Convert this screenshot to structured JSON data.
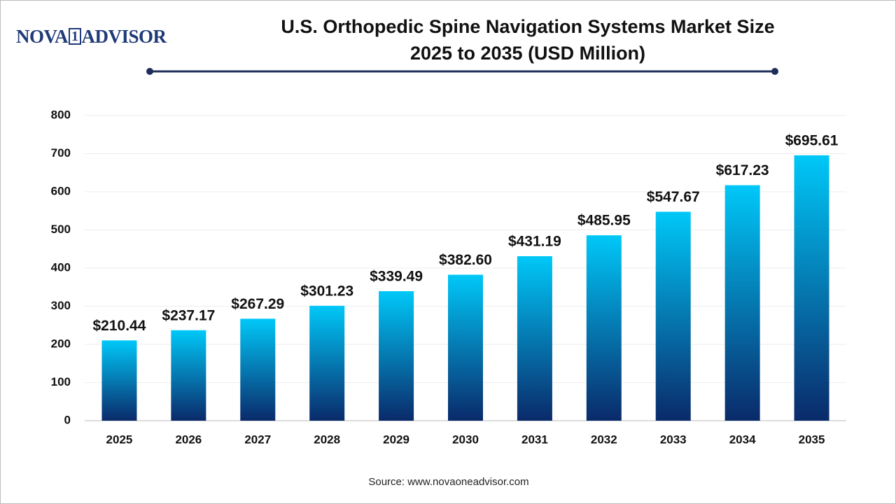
{
  "logo": {
    "left": "NOVA",
    "mark": "1",
    "right": "ADVISOR"
  },
  "source": "Source: www.novaoneadvisor.com",
  "chart_data": {
    "type": "bar",
    "title": "U.S. Orthopedic Spine Navigation Systems Market Size 2025 to 2035 (USD Million)",
    "categories": [
      "2025",
      "2026",
      "2027",
      "2028",
      "2029",
      "2030",
      "2031",
      "2032",
      "2033",
      "2034",
      "2035"
    ],
    "values": [
      210.44,
      237.17,
      267.29,
      301.23,
      339.49,
      382.6,
      431.19,
      485.95,
      547.67,
      617.23,
      695.61
    ],
    "value_labels": [
      "$210.44",
      "$237.17",
      "$267.29",
      "$301.23",
      "$339.49",
      "$382.60",
      "$431.19",
      "$485.95",
      "$547.67",
      "$617.23",
      "$695.61"
    ],
    "color": [
      "#00c8f8",
      "#0a2a6a"
    ],
    "ylim": [
      0,
      800
    ],
    "yticks": [
      0,
      100,
      200,
      300,
      400,
      500,
      600,
      700,
      800
    ],
    "grid": true
  }
}
